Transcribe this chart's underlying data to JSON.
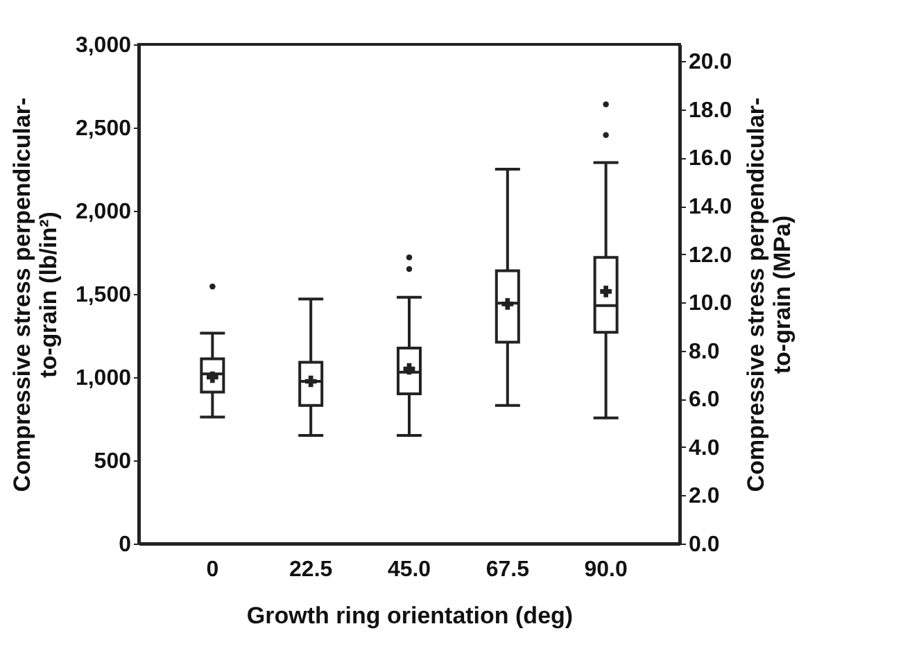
{
  "chart_data": {
    "type": "box",
    "xlabel": "Growth ring orientation (deg)",
    "ylabel": "Compressive stress perpendicular-\nto-grain (lb/in²)",
    "y2label": "Compressive stress perpendicular-\nto-grain (MPa)",
    "categories": [
      "0",
      "22.5",
      "45.0",
      "67.5",
      "90.0"
    ],
    "boxes": [
      {
        "low": 760,
        "q1": 910,
        "median": 1020,
        "q3": 1110,
        "high": 1265,
        "mean": 1000,
        "outliers": [
          1545
        ]
      },
      {
        "low": 650,
        "q1": 830,
        "median": 975,
        "q3": 1090,
        "high": 1470,
        "mean": 975
      },
      {
        "low": 650,
        "q1": 900,
        "median": 1030,
        "q3": 1175,
        "high": 1480,
        "mean": 1050,
        "outliers": [
          1650,
          1720
        ]
      },
      {
        "low": 830,
        "q1": 1210,
        "median": 1445,
        "q3": 1640,
        "high": 2250,
        "mean": 1440
      },
      {
        "low": 755,
        "q1": 1270,
        "median": 1430,
        "q3": 1720,
        "high": 2290,
        "mean": 1515,
        "outliers": [
          2455,
          2640
        ]
      }
    ],
    "ylim": [
      0,
      3000
    ],
    "yticks": [
      {
        "value": 0,
        "label": "0"
      },
      {
        "value": 500,
        "label": "500"
      },
      {
        "value": 1000,
        "label": "1,000"
      },
      {
        "value": 1500,
        "label": "1,500"
      },
      {
        "value": 2000,
        "label": "2,000"
      },
      {
        "value": 2500,
        "label": "2,500"
      },
      {
        "value": 3000,
        "label": "3,000"
      }
    ],
    "y2lim": [
      0,
      20.7
    ],
    "y2ticks": [
      {
        "value": 0,
        "label": "0.0"
      },
      {
        "value": 2,
        "label": "2.0"
      },
      {
        "value": 4,
        "label": "4.0"
      },
      {
        "value": 6,
        "label": "6.0"
      },
      {
        "value": 8,
        "label": "8.0"
      },
      {
        "value": 10,
        "label": "10.0"
      },
      {
        "value": 12,
        "label": "12.0"
      },
      {
        "value": 14,
        "label": "14.0"
      },
      {
        "value": 16,
        "label": "16.0"
      },
      {
        "value": 18,
        "label": "18.0"
      },
      {
        "value": 20,
        "label": "20.0"
      }
    ],
    "grid": false
  }
}
